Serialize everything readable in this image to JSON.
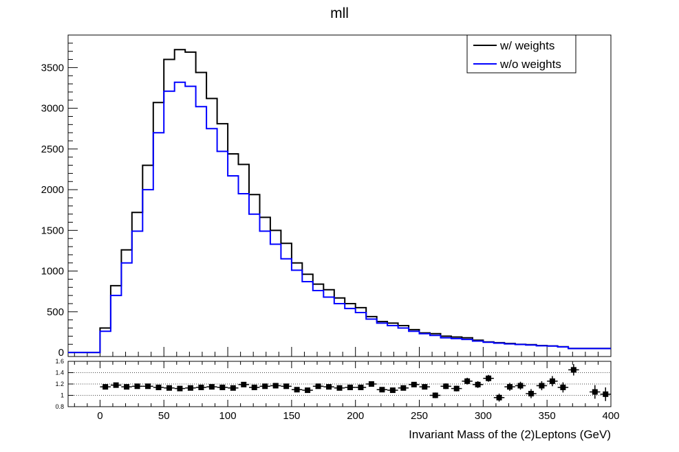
{
  "chart_data": [
    {
      "type": "line",
      "role": "main-histogram",
      "title": "mll",
      "xlabel": "Invariant Mass of the (2)Leptons (GeV)",
      "ylabel": "",
      "xlim": [
        -25,
        400
      ],
      "ylim": [
        -50,
        3900
      ],
      "yticks": [
        0,
        500,
        1000,
        1500,
        2000,
        2500,
        3000,
        3500
      ],
      "grid": false,
      "legend_position": "top-right",
      "x_edges": [
        -25,
        0,
        0,
        8.33,
        16.67,
        25,
        33.33,
        41.67,
        50,
        58.33,
        66.67,
        75,
        83.33,
        91.67,
        100,
        108.33,
        116.67,
        125,
        133.33,
        141.67,
        150,
        158.33,
        166.67,
        175,
        183.33,
        191.67,
        200,
        208.33,
        216.67,
        225,
        233.33,
        241.67,
        250,
        258.33,
        266.67,
        275,
        283.33,
        291.67,
        300,
        308.33,
        316.67,
        325,
        333.33,
        341.67,
        350,
        358.33,
        366.67,
        375,
        383.33,
        391.67,
        400
      ],
      "series": [
        {
          "name": "w/ weights",
          "color": "#000000",
          "values": [
            0,
            0,
            300,
            820,
            1260,
            1720,
            2300,
            3070,
            3600,
            3720,
            3690,
            3440,
            3120,
            2810,
            2440,
            2310,
            1940,
            1660,
            1500,
            1340,
            1100,
            960,
            840,
            770,
            670,
            600,
            550,
            440,
            380,
            360,
            330,
            280,
            240,
            230,
            200,
            190,
            180,
            150,
            130,
            120,
            110,
            100,
            95,
            85,
            80,
            70,
            50,
            50,
            50,
            50
          ]
        },
        {
          "name": "w/o weights",
          "color": "#0000ff",
          "values": [
            0,
            0,
            260,
            700,
            1100,
            1490,
            2000,
            2700,
            3210,
            3320,
            3270,
            3020,
            2750,
            2470,
            2170,
            1950,
            1700,
            1490,
            1330,
            1150,
            1010,
            870,
            760,
            680,
            600,
            540,
            490,
            410,
            360,
            330,
            300,
            260,
            230,
            210,
            180,
            170,
            160,
            140,
            125,
            115,
            105,
            98,
            92,
            82,
            78,
            68,
            48,
            48,
            48,
            48
          ]
        }
      ]
    },
    {
      "type": "scatter",
      "role": "ratio-panel",
      "xlim": [
        -25,
        400
      ],
      "ylim": [
        0.8,
        1.6
      ],
      "yticks": [
        "0.8",
        "1",
        "1.2",
        "1.4",
        "1.6"
      ],
      "xticks": [
        "0",
        "50",
        "100",
        "150",
        "200",
        "250",
        "300",
        "350",
        "400"
      ],
      "grid": true,
      "points": {
        "x": [
          4.17,
          12.5,
          20.83,
          29.17,
          37.5,
          45.83,
          54.17,
          62.5,
          70.83,
          79.17,
          87.5,
          95.83,
          104.17,
          112.5,
          120.83,
          129.17,
          137.5,
          145.83,
          154.17,
          162.5,
          170.83,
          179.17,
          187.5,
          195.83,
          204.17,
          212.5,
          220.83,
          229.17,
          237.5,
          245.83,
          254.17,
          262.5,
          270.83,
          279.17,
          287.5,
          295.83,
          304.17,
          312.5,
          320.83,
          329.17,
          337.5,
          345.83,
          354.17,
          362.5,
          370.83,
          379.17,
          387.5,
          395.83
        ],
        "y": [
          1.15,
          1.18,
          1.15,
          1.16,
          1.16,
          1.14,
          1.13,
          1.12,
          1.13,
          1.14,
          1.15,
          1.14,
          1.13,
          1.19,
          1.14,
          1.16,
          1.17,
          1.16,
          1.1,
          1.09,
          1.16,
          1.15,
          1.13,
          1.14,
          1.14,
          1.2,
          1.1,
          1.09,
          1.13,
          1.19,
          1.15,
          1.0,
          1.16,
          1.12,
          1.25,
          1.19,
          1.3,
          0.96,
          1.15,
          1.17,
          1.03,
          1.17,
          1.25,
          1.14,
          1.45,
          null,
          1.06,
          1.02
        ],
        "err": [
          0.03,
          0.03,
          0.03,
          0.03,
          0.03,
          0.03,
          0.03,
          0.03,
          0.03,
          0.03,
          0.03,
          0.03,
          0.03,
          0.03,
          0.03,
          0.03,
          0.03,
          0.03,
          0.03,
          0.03,
          0.03,
          0.03,
          0.03,
          0.03,
          0.03,
          0.03,
          0.03,
          0.03,
          0.04,
          0.04,
          0.04,
          0.05,
          0.05,
          0.05,
          0.06,
          0.06,
          0.06,
          0.07,
          0.07,
          0.07,
          0.08,
          0.08,
          0.09,
          0.09,
          0.1,
          0,
          0.12,
          0.12
        ]
      }
    }
  ]
}
